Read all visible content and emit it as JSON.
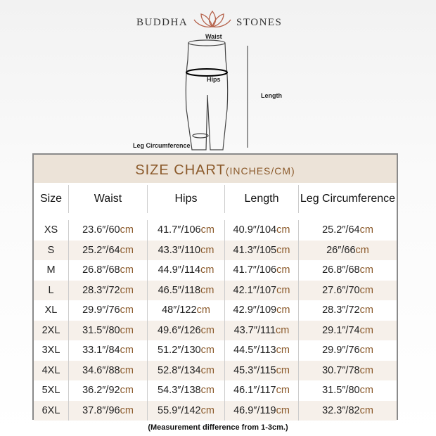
{
  "brand": {
    "left": "BUDDHA",
    "right": "STONES"
  },
  "diagram": {
    "waist": "Waist",
    "hips": "Hips",
    "length": "Length",
    "leg": "Leg Circumference"
  },
  "chart": {
    "title": "SIZE CHART",
    "unit": "(INCHES/CM)",
    "headers": [
      "Size",
      "Waist",
      "Hips",
      "Length",
      "Leg Circumference"
    ],
    "unit_suffix": "cm",
    "rows": [
      [
        "XS",
        "23.6″/60",
        "41.7″/106",
        "40.9″/104",
        "25.2″/64"
      ],
      [
        "S",
        "25.2″/64",
        "43.3″/110",
        "41.3″/105",
        "26″/66"
      ],
      [
        "M",
        "26.8″/68",
        "44.9″/114",
        "41.7″/106",
        "26.8″/68"
      ],
      [
        "L",
        "28.3″/72",
        "46.5″/118",
        "42.1″/107",
        "27.6″/70"
      ],
      [
        "XL",
        "29.9″/76",
        "48″/122",
        "42.9″/109",
        "28.3″/72"
      ],
      [
        "2XL",
        "31.5″/80",
        "49.6″/126",
        "43.7″/111",
        "29.1″/74"
      ],
      [
        "3XL",
        "33.1″/84",
        "51.2″/130",
        "44.5″/113",
        "29.9″/76"
      ],
      [
        "4XL",
        "34.6″/88",
        "52.8″/134",
        "45.3″/115",
        "30.7″/78"
      ],
      [
        "5XL",
        "36.2″/92",
        "54.3″/138",
        "46.1″/117",
        "31.5″/80"
      ],
      [
        "6XL",
        "37.8″/96",
        "55.9″/142",
        "46.9″/119",
        "32.3″/82"
      ]
    ]
  },
  "note": "(Measurement difference from 1-3cm.)"
}
